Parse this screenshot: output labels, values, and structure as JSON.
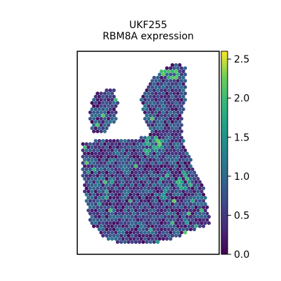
{
  "chart_data": {
    "type": "scatter",
    "title_lines": [
      "UKF255",
      "RBM8A expression"
    ],
    "colormap": "viridis",
    "colorbar": {
      "ticks": [
        0.0,
        0.5,
        1.0,
        1.5,
        2.0,
        2.5
      ],
      "tick_labels": [
        "0.0",
        "0.5",
        "1.0",
        "1.5",
        "2.0",
        "2.5"
      ],
      "vmin": 0.0,
      "vmax": 2.6
    },
    "axes": {
      "x_ticks": false,
      "y_ticks": false,
      "grid": false,
      "frame": true
    },
    "description_values": {
      "background_level": 0.6,
      "highlights": [
        {
          "region": "upper-right lobe",
          "value": 2.2
        },
        {
          "region": "right-center",
          "value": 2.0
        },
        {
          "region": "center",
          "value": 1.9
        },
        {
          "region": "lower-center",
          "value": 1.6
        }
      ]
    },
    "colors": {
      "low": "#440154",
      "mid": "#21918c",
      "high": "#fde725"
    }
  }
}
